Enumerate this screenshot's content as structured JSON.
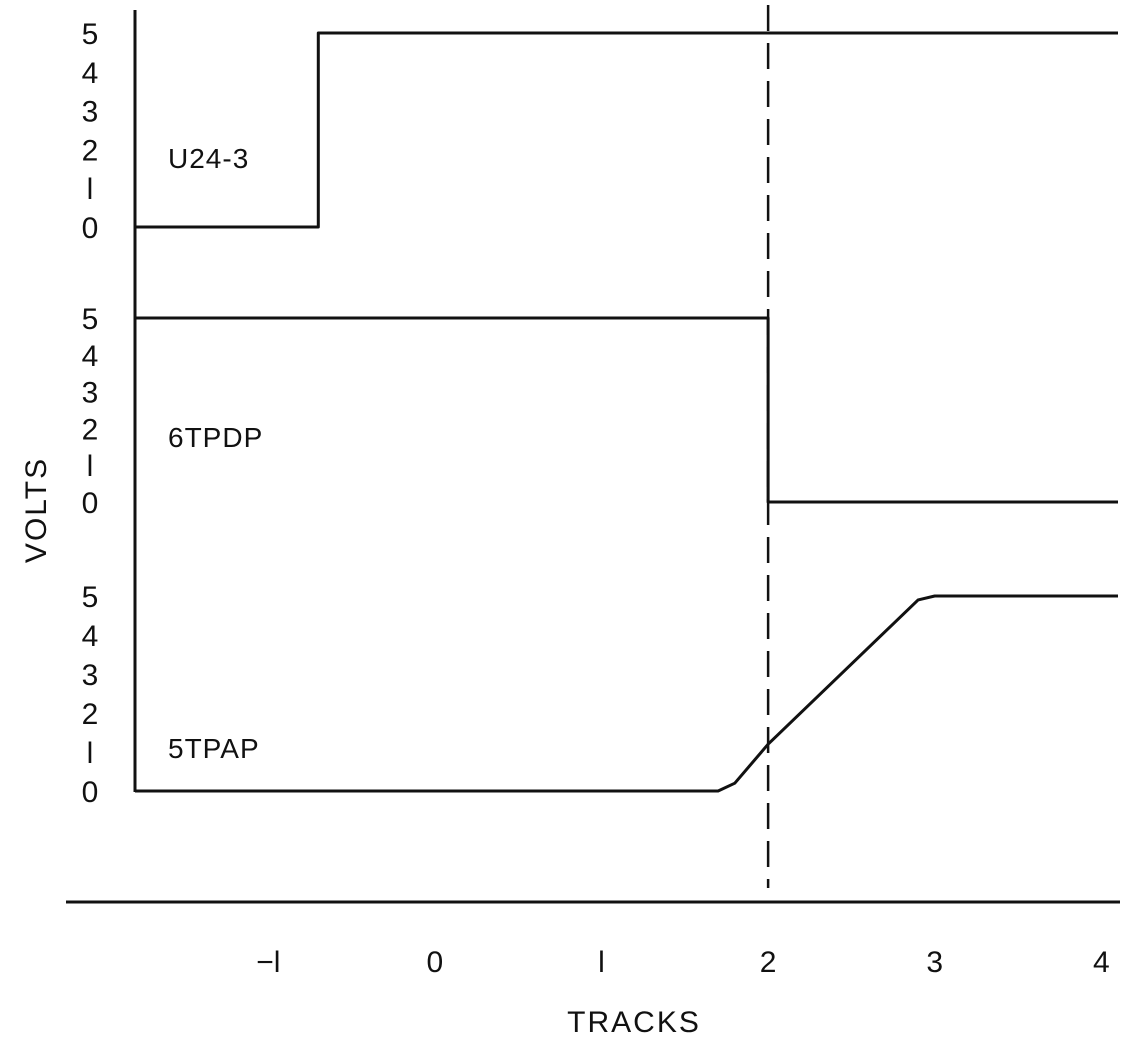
{
  "chart_data": {
    "type": "line",
    "title": "",
    "xlabel": "TRACKS",
    "ylabel": "VOLTS",
    "x_ticks": [
      "−l",
      "0",
      "l",
      "2",
      "3",
      "4"
    ],
    "x_tick_values": [
      -1,
      0,
      1,
      2,
      3,
      4
    ],
    "xlim": [
      -1.8,
      4.1
    ],
    "y_ticks": [
      "0",
      "l",
      "2",
      "3",
      "4",
      "5"
    ],
    "y_tick_values": [
      0,
      1,
      2,
      3,
      4,
      5
    ],
    "ylim": [
      0,
      5
    ],
    "grid": false,
    "marker_line": {
      "x": 2,
      "style": "dashed"
    },
    "series": [
      {
        "name": "U24-3",
        "x": [
          -1.8,
          -0.7,
          -0.7,
          4.1
        ],
        "y": [
          0,
          0,
          5,
          5
        ]
      },
      {
        "name": "6TPDP",
        "x": [
          -1.8,
          2.0,
          2.0,
          4.1
        ],
        "y": [
          5,
          5,
          0,
          0
        ]
      },
      {
        "name": "5TPAP",
        "x": [
          -1.8,
          1.7,
          1.8,
          2.0,
          2.9,
          3.0,
          4.1
        ],
        "y": [
          0,
          0,
          0.2,
          1.2,
          4.9,
          5,
          5
        ]
      }
    ]
  }
}
